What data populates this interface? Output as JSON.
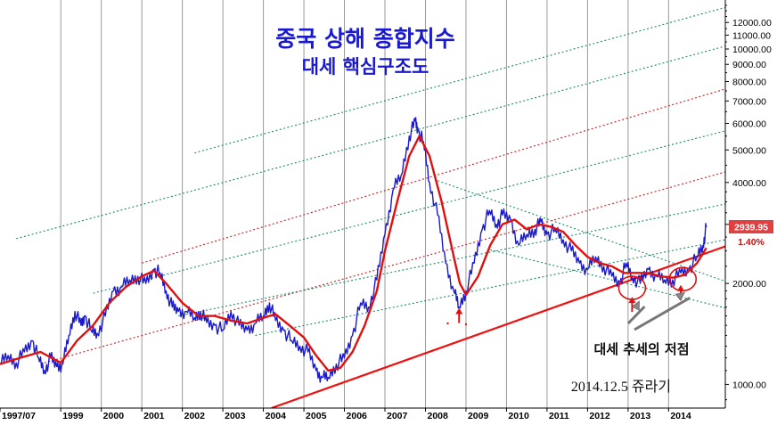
{
  "chart_data": {
    "type": "line",
    "title": "중국 상해 종합지수",
    "subtitle": "대세 핵심구조도",
    "y_scale": "log",
    "ylim": [
      850,
      14000
    ],
    "xlim": [
      1997.5,
      2015.4
    ],
    "y_ticks": [
      {
        "value": 1000,
        "label": "1000.00"
      },
      {
        "value": 2000,
        "label": "2000.00"
      },
      {
        "value": 3000,
        "label": "3000.00"
      },
      {
        "value": 4000,
        "label": "4000.00"
      },
      {
        "value": 5000,
        "label": "5000.00"
      },
      {
        "value": 6000,
        "label": "6000.00"
      },
      {
        "value": 7000,
        "label": "7000.00"
      },
      {
        "value": 8000,
        "label": "8000.00"
      },
      {
        "value": 9000,
        "label": "9000.00"
      },
      {
        "value": 10000,
        "label": "10000.00"
      },
      {
        "value": 11000,
        "label": "11000.00"
      },
      {
        "value": 12000,
        "label": "12000.00"
      }
    ],
    "x_ticks": [
      {
        "value": 1997.5,
        "label": "1997/07"
      },
      {
        "value": 1999,
        "label": "1999"
      },
      {
        "value": 2000,
        "label": "2000"
      },
      {
        "value": 2001,
        "label": "2001"
      },
      {
        "value": 2002,
        "label": "2002"
      },
      {
        "value": 2003,
        "label": "2003"
      },
      {
        "value": 2004,
        "label": "2004"
      },
      {
        "value": 2005,
        "label": "2005"
      },
      {
        "value": 2006,
        "label": "2006"
      },
      {
        "value": 2007,
        "label": "2007"
      },
      {
        "value": 2008,
        "label": "2008"
      },
      {
        "value": 2009,
        "label": "2009"
      },
      {
        "value": 2010,
        "label": "2010"
      },
      {
        "value": 2011,
        "label": "2011"
      },
      {
        "value": 2012,
        "label": "2012"
      },
      {
        "value": 2013,
        "label": "2013"
      },
      {
        "value": 2014,
        "label": "2014"
      }
    ],
    "series": [
      {
        "kind": "price",
        "color": "#1a1acc",
        "x": [
          1997.5,
          1997.7,
          1997.9,
          1998.1,
          1998.3,
          1998.45,
          1998.6,
          1998.75,
          1998.9,
          1999.05,
          1999.2,
          1999.35,
          1999.5,
          1999.6,
          1999.75,
          1999.9,
          2000.1,
          2000.3,
          2000.5,
          2000.7,
          2000.9,
          2001.1,
          2001.3,
          2001.45,
          2001.6,
          2001.75,
          2001.9,
          2002.1,
          2002.3,
          2002.45,
          2002.6,
          2002.8,
          2003.0,
          2003.2,
          2003.4,
          2003.6,
          2003.8,
          2004.0,
          2004.15,
          2004.3,
          2004.5,
          2004.7,
          2004.9,
          2005.1,
          2005.3,
          2005.45,
          2005.6,
          2005.8,
          2006.0,
          2006.2,
          2006.4,
          2006.6,
          2006.8,
          2007.0,
          2007.2,
          2007.4,
          2007.6,
          2007.75,
          2007.82,
          2007.95,
          2008.1,
          2008.3,
          2008.5,
          2008.7,
          2008.83,
          2009.0,
          2009.2,
          2009.4,
          2009.58,
          2009.75,
          2009.9,
          2010.1,
          2010.3,
          2010.5,
          2010.7,
          2010.85,
          2011.0,
          2011.2,
          2011.4,
          2011.6,
          2011.8,
          2012.0,
          2012.2,
          2012.4,
          2012.6,
          2012.8,
          2012.95,
          2013.1,
          2013.3,
          2013.5,
          2013.7,
          2013.9,
          2014.1,
          2014.3,
          2014.5,
          2014.7,
          2014.85,
          2014.93
        ],
        "values": [
          1150,
          1220,
          1160,
          1250,
          1350,
          1200,
          1100,
          1200,
          1130,
          1150,
          1400,
          1650,
          1500,
          1600,
          1450,
          1420,
          1600,
          1900,
          1950,
          2050,
          2100,
          2000,
          2200,
          2150,
          1900,
          1700,
          1650,
          1650,
          1580,
          1650,
          1530,
          1500,
          1450,
          1650,
          1500,
          1450,
          1520,
          1600,
          1750,
          1550,
          1450,
          1350,
          1300,
          1250,
          1100,
          1050,
          1050,
          1150,
          1200,
          1400,
          1750,
          1700,
          2050,
          2800,
          3800,
          4200,
          5500,
          6100,
          5700,
          5300,
          4000,
          3200,
          2300,
          1900,
          1700,
          1900,
          2300,
          2900,
          3300,
          3000,
          3200,
          3100,
          2600,
          2800,
          2900,
          3050,
          2800,
          2900,
          2700,
          2500,
          2300,
          2200,
          2400,
          2250,
          2100,
          2000,
          2300,
          2100,
          2000,
          2200,
          2100,
          2050,
          2050,
          2150,
          2200,
          2400,
          2600,
          2939.95
        ]
      },
      {
        "kind": "moving-average",
        "color": "#e01010",
        "x": [
          1997.5,
          1998.0,
          1998.5,
          1999.0,
          1999.4,
          1999.8,
          2000.2,
          2000.6,
          2001.0,
          2001.3,
          2001.6,
          2002.0,
          2002.4,
          2002.8,
          2003.2,
          2003.6,
          2004.0,
          2004.3,
          2004.7,
          2005.0,
          2005.3,
          2005.6,
          2005.9,
          2006.2,
          2006.5,
          2006.8,
          2007.0,
          2007.3,
          2007.6,
          2007.85,
          2008.1,
          2008.4,
          2008.7,
          2008.85,
          2009.0,
          2009.3,
          2009.6,
          2009.9,
          2010.2,
          2010.5,
          2010.8,
          2011.1,
          2011.4,
          2011.7,
          2012.0,
          2012.3,
          2012.6,
          2012.9,
          2013.2,
          2013.5,
          2013.8,
          2014.1,
          2014.4,
          2014.7,
          2014.93
        ],
        "values": [
          1150,
          1200,
          1250,
          1160,
          1350,
          1500,
          1750,
          1950,
          2100,
          2180,
          2000,
          1750,
          1600,
          1600,
          1550,
          1520,
          1580,
          1620,
          1480,
          1380,
          1220,
          1100,
          1120,
          1250,
          1500,
          1900,
          2500,
          3500,
          4800,
          5500,
          4800,
          3500,
          2400,
          2000,
          1850,
          2100,
          2600,
          3000,
          3100,
          2900,
          3000,
          2950,
          2850,
          2600,
          2400,
          2300,
          2250,
          2150,
          2150,
          2150,
          2100,
          2080,
          2120,
          2300,
          2550
        ]
      }
    ],
    "trend_lines": [
      {
        "kind": "support",
        "style": "solid",
        "color": "#ee1111",
        "x": [
          2004.2,
          2015.4
        ],
        "values": [
          850,
          2580
        ]
      },
      {
        "kind": "channel",
        "style": "dotted",
        "color": "#cc1a1a",
        "x": [
          2001.0,
          2015.4
        ],
        "values": [
          2300,
          7600
        ]
      },
      {
        "kind": "channel",
        "style": "dotted",
        "color": "#cc1a1a",
        "x": [
          1998.6,
          2015.4
        ],
        "values": [
          1160,
          4300
        ]
      },
      {
        "kind": "channel",
        "style": "dotted",
        "color": "#1a8a6a",
        "x": [
          2002.3,
          2015.4
        ],
        "values": [
          4900,
          13300
        ]
      },
      {
        "kind": "channel",
        "style": "dotted",
        "color": "#1a8a6a",
        "x": [
          1997.9,
          2015.4
        ],
        "values": [
          2720,
          10200
        ]
      },
      {
        "kind": "channel",
        "style": "dotted",
        "color": "#1a8a6a",
        "x": [
          1999.8,
          2015.4
        ],
        "values": [
          1870,
          5700
        ]
      },
      {
        "kind": "channel",
        "style": "dotted",
        "color": "#1a8a6a",
        "x": [
          2001.9,
          2015.4
        ],
        "values": [
          1600,
          3450
        ]
      },
      {
        "kind": "channel",
        "style": "dotted",
        "color": "#1a8a6a",
        "x": [
          2003.8,
          2015.4
        ],
        "values": [
          1400,
          2700
        ]
      },
      {
        "kind": "channel-down",
        "style": "dotted",
        "color": "#1a8a6a",
        "x": [
          2008.3,
          2015.4
        ],
        "values": [
          4050,
          2030
        ]
      },
      {
        "kind": "channel-down",
        "style": "dotted",
        "color": "#1a8a6a",
        "x": [
          2009.6,
          2015.4
        ],
        "values": [
          2520,
          1690
        ]
      }
    ],
    "last_value": {
      "label": "2939.95",
      "value": 2939.95,
      "change": "1.40%"
    },
    "annotations": [
      {
        "text": "대세 추세의 저점"
      },
      {
        "text": "2014.12.5 쥬라기"
      }
    ],
    "markers": [
      {
        "kind": "arrow-up",
        "x": 2008.83,
        "value": 1640,
        "color": "#e01010"
      },
      {
        "kind": "arrow-up",
        "x": 2013.1,
        "value": 1770,
        "color": "#e01010"
      },
      {
        "kind": "arrow-up",
        "x": 2014.3,
        "value": 1920,
        "color": "#e01010"
      }
    ],
    "circles": [
      {
        "x": 2013.1,
        "value": 1940
      },
      {
        "x": 2014.35,
        "value": 2060
      }
    ],
    "colors": {
      "background": "#ffffff",
      "grid": "#9a9a9a",
      "price": "#1a1acc",
      "moving_average": "#e01010",
      "last_value_box": "#e04040"
    },
    "grid": true
  }
}
